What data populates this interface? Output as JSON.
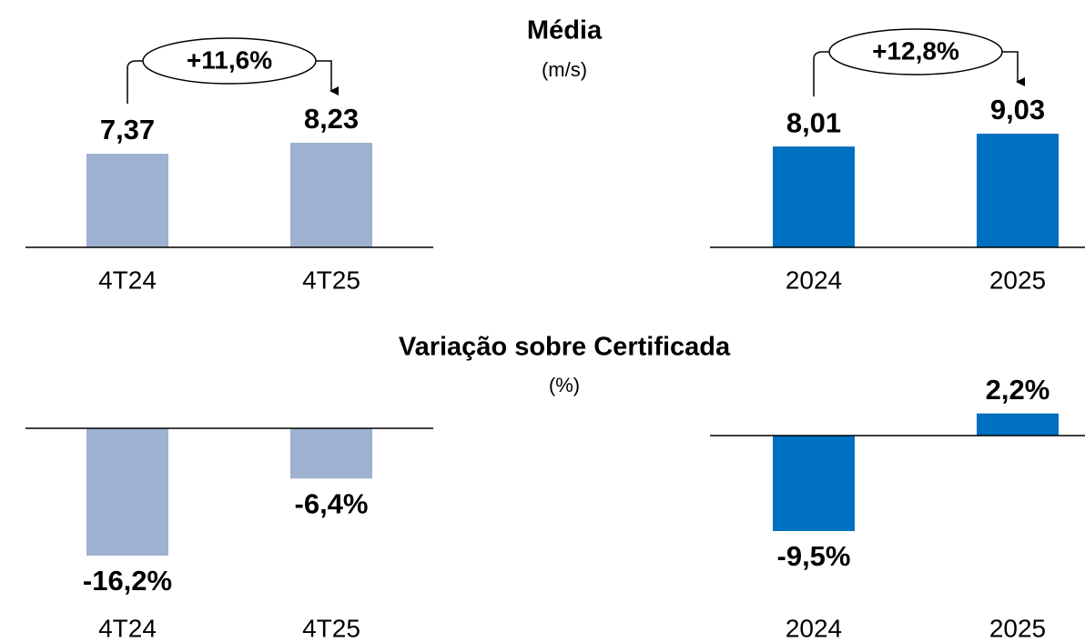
{
  "chart_data": [
    {
      "type": "bar",
      "title": "Média",
      "subtitle": "(m/s)",
      "categories": [
        "4T24",
        "4T25"
      ],
      "values": [
        7.37,
        8.23
      ],
      "value_labels": [
        "7,37",
        "8,23"
      ],
      "color": "#9eb1d0",
      "annotation": "+11,6%"
    },
    {
      "type": "bar",
      "categories": [
        "2024",
        "2025"
      ],
      "values": [
        8.01,
        9.03
      ],
      "value_labels": [
        "8,01",
        "9,03"
      ],
      "color": "#0070c0",
      "annotation": "+12,8%"
    },
    {
      "type": "bar",
      "title": "Variação sobre Certificada",
      "subtitle": "(%)",
      "categories": [
        "4T24",
        "4T25"
      ],
      "values": [
        -16.2,
        -6.4
      ],
      "value_labels": [
        "-16,2%",
        "-6,4%"
      ],
      "color": "#9eb1d0"
    },
    {
      "type": "bar",
      "categories": [
        "2024",
        "2025"
      ],
      "values": [
        -9.5,
        2.2
      ],
      "value_labels": [
        "-9,5%",
        "2,2%"
      ],
      "color": "#0070c0"
    }
  ]
}
